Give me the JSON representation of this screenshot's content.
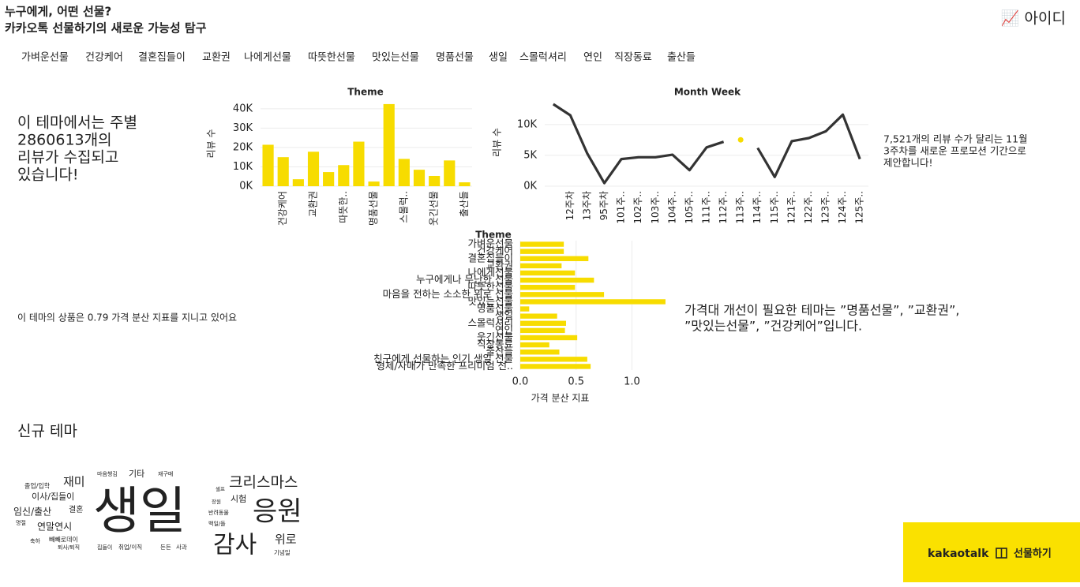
{
  "header": {
    "title": "누구에게, 어떤 선물?",
    "subtitle": "카카오톡 선물하기의 새로운 가능성 탐구",
    "user": "📈 아이디"
  },
  "nav": [
    "가벼운선물",
    "건강케어",
    "결혼집들이",
    "교환권",
    "나에게선물",
    "따뜻한선물",
    "맛있는선물",
    "명품선물",
    "생일",
    "스몰럭셔리",
    "연인",
    "직장동료",
    "출산들"
  ],
  "texts": {
    "reviews_summary": [
      "이 테마에서는 주별",
      "2860613개의",
      "리뷰가 수집되고",
      "있습니다!"
    ],
    "promotion": [
      "7,521개의 리뷰 수가 달리는 11월",
      "3주차를 새로운 프로모션 기간으로",
      "제안합니다!"
    ],
    "price_summary": "이 테마의 상품은 0.79 가격 분산 지표를 지니고 있어요",
    "price_advice": [
      "가격대 개선이 필요한 테마는 ”명품선물”, ”교환권”,",
      "”맛있는선물”, ”건강케어”입니다."
    ],
    "new_theme": "신규 테마"
  },
  "chart_data": [
    {
      "type": "bar",
      "title": "Theme",
      "ylabel": "리뷰 수",
      "color": "#f7dc00",
      "grid": true,
      "categories": [
        null,
        "건강케어",
        null,
        "교환권",
        null,
        "따뜻한..",
        null,
        "명품선물",
        null,
        "스몰럭..",
        null,
        "웃긴선물",
        null,
        "출산들"
      ],
      "values": [
        21400,
        15000,
        3600,
        17800,
        7300,
        10900,
        23000,
        2400,
        42400,
        14100,
        8500,
        5300,
        13300,
        2000
      ],
      "ylim": [
        0,
        44000
      ],
      "yticks": [
        {
          "value": 0,
          "label": "0K"
        },
        {
          "value": 10000,
          "label": "10K"
        },
        {
          "value": 20000,
          "label": "20K"
        },
        {
          "value": 30000,
          "label": "30K"
        },
        {
          "value": 40000,
          "label": "40K"
        }
      ]
    },
    {
      "type": "line",
      "title": "Month Week",
      "ylabel": "리뷰 수",
      "grid": true,
      "categories": [
        null,
        "12주차",
        "13주차",
        "95주차",
        "101주..",
        "102주..",
        "103주..",
        "104주..",
        "105주..",
        "111주..",
        "112주..",
        "113주..",
        "114주..",
        "115주..",
        "121주..",
        "122주..",
        "123주..",
        "124주..",
        "125주.."
      ],
      "series": [
        {
          "color": "#333333",
          "mode": "lines",
          "values": [
            13300,
            11500,
            5300,
            500,
            4400,
            4700,
            4700,
            5100,
            2600,
            6300,
            7200,
            null,
            6200,
            1500,
            7300,
            7800,
            8900,
            11600,
            4400
          ]
        },
        {
          "color": "#f7dc00",
          "mode": "markers",
          "values": [
            null,
            null,
            null,
            null,
            null,
            null,
            null,
            null,
            null,
            null,
            null,
            7521,
            null,
            null,
            null,
            null,
            null,
            null,
            null
          ]
        }
      ],
      "ylim": [
        0,
        14200
      ],
      "yticks": [
        {
          "value": 0,
          "label": "0K"
        },
        {
          "value": 5000,
          "label": "5K"
        },
        {
          "value": 10000,
          "label": "10K"
        }
      ]
    },
    {
      "type": "bar",
      "horizontal": true,
      "title": "Theme",
      "xlabel": "가격 분산 지표",
      "color": "#f7dc00",
      "grid": true,
      "categories": [
        "가벼운선물",
        "건강케어",
        "결혼집들이",
        "교환권",
        "나에게선물",
        "누구에게나 무난한 선물",
        "따뜻한선물",
        "마음을 전하는 소소한 위로 선물",
        "맛있는선물",
        "명품선물",
        "생일",
        "스몰럭셔리",
        "연인",
        "웃긴선물",
        "직장동료",
        "출산들",
        "친구에게 선물하는 인기 생일 선물",
        "형제/자매가 만족한 프리미엄 선.."
      ],
      "values": [
        0.39,
        0.39,
        0.61,
        0.37,
        0.49,
        0.66,
        0.49,
        0.75,
        1.3,
        0.08,
        0.33,
        0.41,
        0.4,
        0.51,
        0.26,
        0.35,
        0.6,
        0.63
      ],
      "xlim": [
        0,
        1.35
      ],
      "xticks": [
        {
          "value": 0,
          "label": "0.0"
        },
        0.5,
        {
          "value": 1,
          "label": "1.0"
        }
      ]
    }
  ],
  "word_cloud": {
    "words": [
      {
        "text": "생일",
        "color": "#86bcb6"
      },
      {
        "text": "응원",
        "color": "#a5a5a5"
      },
      {
        "text": "감사",
        "color": "#4e79a7"
      },
      {
        "text": "크리스마스",
        "color": "#9dc6e0"
      },
      {
        "text": "재미",
        "color": "#b07aa1"
      },
      {
        "text": "이사/집들이",
        "color": "#d37295"
      },
      {
        "text": "임신/출산",
        "color": "#f1a2b3"
      },
      {
        "text": "결혼",
        "color": "#8cc5d8"
      },
      {
        "text": "연말연시",
        "color": "#555555"
      },
      {
        "text": "졸업/입학",
        "color": "#d898b0"
      },
      {
        "text": "마음챙김",
        "color": "#f1a340"
      },
      {
        "text": "기타",
        "color": "#e8871e"
      },
      {
        "text": "재구매",
        "color": "#9ec9e2"
      },
      {
        "text": "빼빼로데이",
        "color": "#f28e2b"
      },
      {
        "text": "축하",
        "color": "#f4a460"
      },
      {
        "text": "명절",
        "color": "#59a14f"
      },
      {
        "text": "퇴사/퇴직",
        "color": "#e8871e"
      },
      {
        "text": "집들이",
        "color": "#444444"
      },
      {
        "text": "취업/이직",
        "color": "#4e79a7"
      },
      {
        "text": "든든",
        "color": "#59a14f"
      },
      {
        "text": "사과",
        "color": "#499894"
      },
      {
        "text": "위로",
        "color": "#d37295"
      },
      {
        "text": "시험",
        "color": "#d37295"
      },
      {
        "text": "셀프",
        "color": "#e15759"
      },
      {
        "text": "장원",
        "color": "#f1a340"
      },
      {
        "text": "반려동물",
        "color": "#8cd17d"
      },
      {
        "text": "백일/돌",
        "color": "#e8871e"
      },
      {
        "text": "기념일",
        "color": "#f1a340"
      }
    ]
  },
  "logo": {
    "brand": "kakaotalk",
    "service": "선물하기"
  }
}
